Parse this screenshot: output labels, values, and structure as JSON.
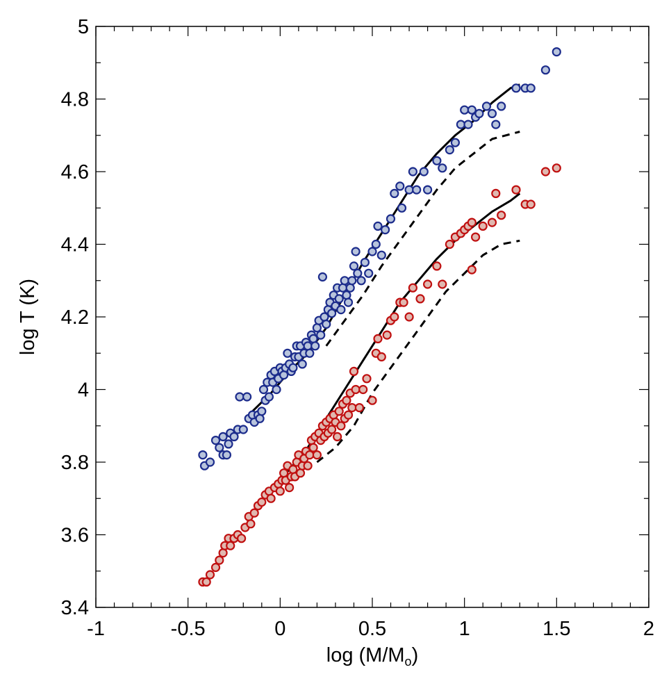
{
  "chart_data": {
    "type": "scatter",
    "title": "",
    "xlabel": "log (M/M",
    "xlabel_sub": "o",
    "xlabel_end": ")",
    "ylabel": "log T (K)",
    "xlim": [
      -1,
      2
    ],
    "ylim": [
      3.4,
      5
    ],
    "xticks": [
      -1,
      -0.5,
      0,
      0.5,
      1,
      1.5,
      2
    ],
    "xtick_labels": [
      "-1",
      "-0.5",
      "0",
      "0.5",
      "1",
      "1.5",
      "2"
    ],
    "yticks": [
      3.4,
      3.6,
      3.8,
      4,
      4.2,
      4.4,
      4.6,
      4.8,
      5
    ],
    "ytick_labels": [
      "3.4",
      "3.6",
      "3.8",
      "4",
      "4.2",
      "4.4",
      "4.6",
      "4.8",
      "5"
    ],
    "grid": false,
    "series": [
      {
        "name": "blue-points",
        "kind": "scatter",
        "fill": "#b8c4dc",
        "stroke": "#1c2c8c",
        "points": [
          [
            -0.42,
            3.82
          ],
          [
            -0.41,
            3.79
          ],
          [
            -0.38,
            3.8
          ],
          [
            -0.35,
            3.86
          ],
          [
            -0.33,
            3.84
          ],
          [
            -0.31,
            3.82
          ],
          [
            -0.31,
            3.87
          ],
          [
            -0.29,
            3.82
          ],
          [
            -0.28,
            3.85
          ],
          [
            -0.27,
            3.88
          ],
          [
            -0.25,
            3.87
          ],
          [
            -0.23,
            3.89
          ],
          [
            -0.22,
            3.98
          ],
          [
            -0.2,
            3.89
          ],
          [
            -0.18,
            3.98
          ],
          [
            -0.17,
            3.92
          ],
          [
            -0.15,
            3.93
          ],
          [
            -0.14,
            3.91
          ],
          [
            -0.12,
            3.93
          ],
          [
            -0.11,
            3.92
          ],
          [
            -0.1,
            3.94
          ],
          [
            -0.09,
            4.0
          ],
          [
            -0.08,
            3.97
          ],
          [
            -0.07,
            4.02
          ],
          [
            -0.06,
            3.98
          ],
          [
            -0.05,
            4.04
          ],
          [
            -0.04,
            4.02
          ],
          [
            -0.03,
            4.05
          ],
          [
            -0.02,
            4.0
          ],
          [
            -0.01,
            4.03
          ],
          [
            0.0,
            4.06
          ],
          [
            0.01,
            4.05
          ],
          [
            0.02,
            4.04
          ],
          [
            0.03,
            4.06
          ],
          [
            0.04,
            4.1
          ],
          [
            0.05,
            4.07
          ],
          [
            0.06,
            4.05
          ],
          [
            0.07,
            4.06
          ],
          [
            0.08,
            4.09
          ],
          [
            0.09,
            4.12
          ],
          [
            0.1,
            4.09
          ],
          [
            0.11,
            4.12
          ],
          [
            0.12,
            4.07
          ],
          [
            0.13,
            4.1
          ],
          [
            0.14,
            4.13
          ],
          [
            0.15,
            4.12
          ],
          [
            0.16,
            4.1
          ],
          [
            0.17,
            4.15
          ],
          [
            0.18,
            4.14
          ],
          [
            0.19,
            4.12
          ],
          [
            0.2,
            4.17
          ],
          [
            0.21,
            4.19
          ],
          [
            0.22,
            4.15
          ],
          [
            0.23,
            4.31
          ],
          [
            0.24,
            4.2
          ],
          [
            0.25,
            4.18
          ],
          [
            0.26,
            4.22
          ],
          [
            0.27,
            4.24
          ],
          [
            0.28,
            4.21
          ],
          [
            0.29,
            4.26
          ],
          [
            0.3,
            4.23
          ],
          [
            0.31,
            4.28
          ],
          [
            0.32,
            4.25
          ],
          [
            0.33,
            4.22
          ],
          [
            0.34,
            4.28
          ],
          [
            0.35,
            4.3
          ],
          [
            0.36,
            4.26
          ],
          [
            0.37,
            4.24
          ],
          [
            0.38,
            4.28
          ],
          [
            0.39,
            4.3
          ],
          [
            0.4,
            4.34
          ],
          [
            0.41,
            4.38
          ],
          [
            0.42,
            4.32
          ],
          [
            0.44,
            4.3
          ],
          [
            0.46,
            4.35
          ],
          [
            0.48,
            4.32
          ],
          [
            0.5,
            4.38
          ],
          [
            0.52,
            4.4
          ],
          [
            0.53,
            4.45
          ],
          [
            0.55,
            4.37
          ],
          [
            0.57,
            4.44
          ],
          [
            0.6,
            4.47
          ],
          [
            0.62,
            4.54
          ],
          [
            0.65,
            4.56
          ],
          [
            0.66,
            4.5
          ],
          [
            0.7,
            4.55
          ],
          [
            0.72,
            4.6
          ],
          [
            0.74,
            4.55
          ],
          [
            0.78,
            4.6
          ],
          [
            0.8,
            4.55
          ],
          [
            0.85,
            4.63
          ],
          [
            0.88,
            4.61
          ],
          [
            0.92,
            4.66
          ],
          [
            0.95,
            4.68
          ],
          [
            0.98,
            4.73
          ],
          [
            1.0,
            4.77
          ],
          [
            1.02,
            4.73
          ],
          [
            1.04,
            4.77
          ],
          [
            1.06,
            4.75
          ],
          [
            1.08,
            4.76
          ],
          [
            1.12,
            4.78
          ],
          [
            1.15,
            4.76
          ],
          [
            1.17,
            4.73
          ],
          [
            1.2,
            4.78
          ],
          [
            1.28,
            4.83
          ],
          [
            1.33,
            4.83
          ],
          [
            1.36,
            4.83
          ],
          [
            1.44,
            4.88
          ],
          [
            1.5,
            4.93
          ]
        ]
      },
      {
        "name": "red-points",
        "kind": "scatter",
        "fill": "#e0b8b0",
        "stroke": "#c01010",
        "points": [
          [
            -0.42,
            3.47
          ],
          [
            -0.4,
            3.47
          ],
          [
            -0.38,
            3.49
          ],
          [
            -0.35,
            3.51
          ],
          [
            -0.33,
            3.53
          ],
          [
            -0.31,
            3.55
          ],
          [
            -0.3,
            3.57
          ],
          [
            -0.28,
            3.59
          ],
          [
            -0.27,
            3.57
          ],
          [
            -0.25,
            3.59
          ],
          [
            -0.23,
            3.6
          ],
          [
            -0.21,
            3.59
          ],
          [
            -0.19,
            3.62
          ],
          [
            -0.17,
            3.65
          ],
          [
            -0.16,
            3.63
          ],
          [
            -0.14,
            3.66
          ],
          [
            -0.12,
            3.68
          ],
          [
            -0.1,
            3.69
          ],
          [
            -0.08,
            3.71
          ],
          [
            -0.06,
            3.72
          ],
          [
            -0.05,
            3.7
          ],
          [
            -0.03,
            3.73
          ],
          [
            -0.01,
            3.74
          ],
          [
            0.0,
            3.72
          ],
          [
            0.01,
            3.75
          ],
          [
            0.02,
            3.77
          ],
          [
            0.03,
            3.75
          ],
          [
            0.04,
            3.79
          ],
          [
            0.05,
            3.73
          ],
          [
            0.06,
            3.76
          ],
          [
            0.07,
            3.78
          ],
          [
            0.08,
            3.76
          ],
          [
            0.09,
            3.8
          ],
          [
            0.1,
            3.82
          ],
          [
            0.11,
            3.77
          ],
          [
            0.12,
            3.79
          ],
          [
            0.13,
            3.81
          ],
          [
            0.14,
            3.83
          ],
          [
            0.15,
            3.79
          ],
          [
            0.16,
            3.82
          ],
          [
            0.17,
            3.86
          ],
          [
            0.18,
            3.84
          ],
          [
            0.19,
            3.87
          ],
          [
            0.2,
            3.82
          ],
          [
            0.21,
            3.88
          ],
          [
            0.22,
            3.86
          ],
          [
            0.23,
            3.9
          ],
          [
            0.24,
            3.87
          ],
          [
            0.25,
            3.91
          ],
          [
            0.26,
            3.88
          ],
          [
            0.27,
            3.92
          ],
          [
            0.28,
            3.89
          ],
          [
            0.29,
            3.93
          ],
          [
            0.3,
            3.91
          ],
          [
            0.31,
            3.87
          ],
          [
            0.32,
            3.94
          ],
          [
            0.33,
            3.9
          ],
          [
            0.34,
            3.96
          ],
          [
            0.35,
            3.92
          ],
          [
            0.36,
            3.97
          ],
          [
            0.37,
            3.93
          ],
          [
            0.38,
            3.99
          ],
          [
            0.39,
            3.95
          ],
          [
            0.4,
            4.05
          ],
          [
            0.41,
            4.0
          ],
          [
            0.43,
            3.95
          ],
          [
            0.45,
            4.0
          ],
          [
            0.47,
            4.03
          ],
          [
            0.5,
            3.97
          ],
          [
            0.52,
            4.1
          ],
          [
            0.53,
            4.14
          ],
          [
            0.55,
            4.09
          ],
          [
            0.58,
            4.15
          ],
          [
            0.6,
            4.19
          ],
          [
            0.62,
            4.2
          ],
          [
            0.65,
            4.24
          ],
          [
            0.67,
            4.24
          ],
          [
            0.7,
            4.2
          ],
          [
            0.72,
            4.28
          ],
          [
            0.76,
            4.25
          ],
          [
            0.8,
            4.29
          ],
          [
            0.85,
            4.34
          ],
          [
            0.88,
            4.29
          ],
          [
            0.92,
            4.4
          ],
          [
            0.95,
            4.42
          ],
          [
            0.98,
            4.43
          ],
          [
            1.0,
            4.44
          ],
          [
            1.02,
            4.45
          ],
          [
            1.04,
            4.46
          ],
          [
            1.06,
            4.42
          ],
          [
            1.1,
            4.45
          ],
          [
            1.15,
            4.46
          ],
          [
            1.17,
            4.54
          ],
          [
            1.2,
            4.48
          ],
          [
            1.28,
            4.55
          ],
          [
            1.33,
            4.51
          ],
          [
            1.36,
            4.51
          ],
          [
            1.44,
            4.6
          ],
          [
            1.5,
            4.61
          ],
          [
            1.04,
            4.33
          ]
        ]
      },
      {
        "name": "blue-solid-track",
        "kind": "line",
        "dash": false,
        "points": [
          [
            -0.15,
            3.94
          ],
          [
            -0.05,
            3.99
          ],
          [
            0.05,
            4.05
          ],
          [
            0.15,
            4.1
          ],
          [
            0.25,
            4.17
          ],
          [
            0.35,
            4.26
          ],
          [
            0.45,
            4.35
          ],
          [
            0.55,
            4.43
          ],
          [
            0.65,
            4.51
          ],
          [
            0.75,
            4.59
          ],
          [
            0.85,
            4.65
          ],
          [
            0.95,
            4.7
          ],
          [
            1.05,
            4.74
          ],
          [
            1.15,
            4.79
          ],
          [
            1.25,
            4.83
          ],
          [
            1.3,
            4.84
          ]
        ]
      },
      {
        "name": "blue-dashed-track",
        "kind": "line",
        "dash": true,
        "points": [
          [
            0.25,
            4.12
          ],
          [
            0.35,
            4.19
          ],
          [
            0.45,
            4.26
          ],
          [
            0.55,
            4.34
          ],
          [
            0.65,
            4.41
          ],
          [
            0.75,
            4.48
          ],
          [
            0.85,
            4.55
          ],
          [
            0.95,
            4.61
          ],
          [
            1.05,
            4.65
          ],
          [
            1.15,
            4.69
          ],
          [
            1.3,
            4.71
          ]
        ]
      },
      {
        "name": "red-solid-track",
        "kind": "line",
        "dash": false,
        "points": [
          [
            -0.15,
            3.66
          ],
          [
            -0.05,
            3.72
          ],
          [
            0.05,
            3.78
          ],
          [
            0.15,
            3.84
          ],
          [
            0.25,
            3.92
          ],
          [
            0.35,
            4.0
          ],
          [
            0.45,
            4.08
          ],
          [
            0.55,
            4.16
          ],
          [
            0.65,
            4.24
          ],
          [
            0.75,
            4.3
          ],
          [
            0.85,
            4.36
          ],
          [
            0.95,
            4.41
          ],
          [
            1.05,
            4.45
          ],
          [
            1.15,
            4.49
          ],
          [
            1.25,
            4.52
          ],
          [
            1.3,
            4.54
          ]
        ]
      },
      {
        "name": "red-dashed-track",
        "kind": "line",
        "dash": true,
        "points": [
          [
            0.2,
            3.8
          ],
          [
            0.3,
            3.84
          ],
          [
            0.4,
            3.9
          ],
          [
            0.5,
            3.99
          ],
          [
            0.6,
            4.06
          ],
          [
            0.7,
            4.13
          ],
          [
            0.8,
            4.2
          ],
          [
            0.9,
            4.27
          ],
          [
            1.0,
            4.32
          ],
          [
            1.1,
            4.37
          ],
          [
            1.2,
            4.4
          ],
          [
            1.3,
            4.41
          ]
        ]
      }
    ]
  }
}
